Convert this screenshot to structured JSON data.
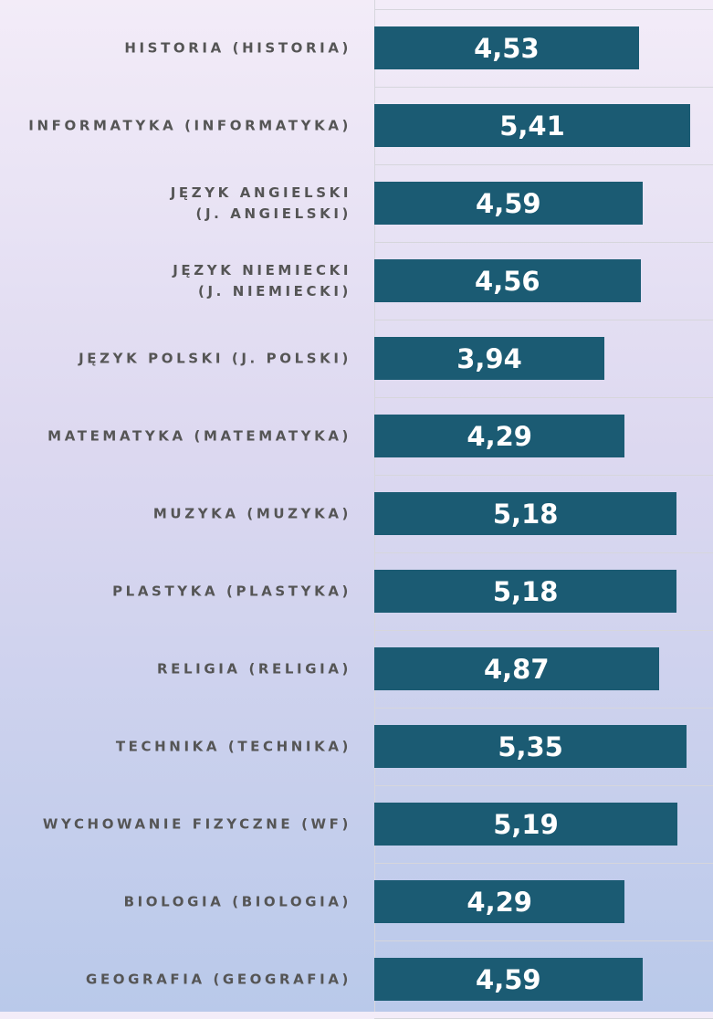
{
  "chart_data": {
    "type": "barh",
    "categories": [
      "HISTORIA (HISTORIA)",
      "INFORMATYKA (INFORMATYKA)",
      "JĘZYK ANGIELSKI (J. ANGIELSKI)",
      "JĘZYK NIEMIECKI (J. NIEMIECKI)",
      "JĘZYK POLSKI (J. POLSKI)",
      "MATEMATYKA (MATEMATYKA)",
      "MUZYKA (MUZYKA)",
      "PLASTYKA (PLASTYKA)",
      "RELIGIA (RELIGIA)",
      "TECHNIKA (TECHNIKA)",
      "WYCHOWANIE FIZYCZNE (WF)",
      "BIOLOGIA (BIOLOGIA)",
      "GEOGRAFIA (GEOGRAFIA)"
    ],
    "values": [
      4.53,
      5.41,
      4.59,
      4.56,
      3.94,
      4.29,
      5.18,
      5.18,
      4.87,
      5.35,
      5.19,
      4.29,
      4.59
    ],
    "value_labels": [
      "4,53",
      "5,41",
      "4,59",
      "4,56",
      "3,94",
      "4,29",
      "5,18",
      "5,18",
      "4,87",
      "5,35",
      "5,19",
      "4,29",
      "4,59"
    ],
    "color": "#1b5b73",
    "xlim": [
      0,
      5.8
    ]
  }
}
